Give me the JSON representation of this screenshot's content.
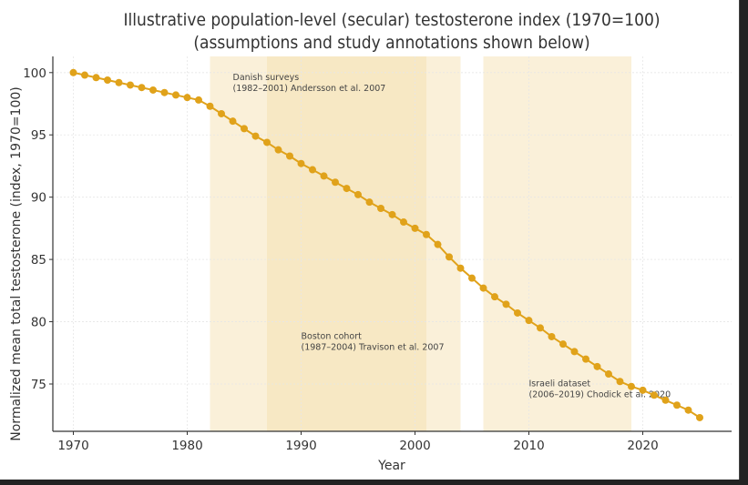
{
  "chart_data": {
    "type": "line",
    "title": "Illustrative population-level (secular) testosterone index (1970=100)",
    "subtitle": "(assumptions and study annotations shown below)",
    "xlabel": "Year",
    "ylabel": "Normalized mean total testosterone (index, 1970=100)",
    "xlim": [
      1968.2,
      2027.8
    ],
    "ylim": [
      71.2,
      101.3
    ],
    "x_ticks": [
      1970,
      1980,
      1990,
      2000,
      2010,
      2020
    ],
    "y_ticks": [
      75,
      80,
      85,
      90,
      95,
      100
    ],
    "grid": true,
    "series": [
      {
        "name": "Testosterone index",
        "color": "#E0A21A",
        "marker": "circle",
        "x": [
          1970,
          1971,
          1972,
          1973,
          1974,
          1975,
          1976,
          1977,
          1978,
          1979,
          1980,
          1981,
          1982,
          1983,
          1984,
          1985,
          1986,
          1987,
          1988,
          1989,
          1990,
          1991,
          1992,
          1993,
          1994,
          1995,
          1996,
          1997,
          1998,
          1999,
          2000,
          2001,
          2002,
          2003,
          2004,
          2005,
          2006,
          2007,
          2008,
          2009,
          2010,
          2011,
          2012,
          2013,
          2014,
          2015,
          2016,
          2017,
          2018,
          2019,
          2020,
          2021,
          2022,
          2023,
          2024,
          2025
        ],
        "values": [
          100.0,
          99.8,
          99.6,
          99.4,
          99.2,
          99.0,
          98.8,
          98.6,
          98.4,
          98.2,
          98.0,
          97.8,
          97.3,
          96.7,
          96.1,
          95.5,
          94.9,
          94.4,
          93.8,
          93.3,
          92.7,
          92.2,
          91.7,
          91.2,
          90.7,
          90.2,
          89.6,
          89.1,
          88.6,
          88.0,
          87.5,
          87.0,
          86.2,
          85.2,
          84.3,
          83.5,
          82.7,
          82.0,
          81.4,
          80.7,
          80.1,
          79.5,
          78.8,
          78.2,
          77.6,
          77.0,
          76.4,
          75.8,
          75.2,
          74.8,
          74.5,
          74.1,
          73.7,
          73.3,
          72.9,
          72.3
        ]
      }
    ],
    "shaded_spans": [
      {
        "label": "Danish surveys",
        "detail": "(1982–2001) Andersson et al. 2007",
        "start": 1982,
        "end": 2001,
        "color": "#F5DDAA",
        "opacity": 0.45
      },
      {
        "label": "Boston cohort",
        "detail": "(1987–2004) Travison et al. 2007",
        "start": 1987,
        "end": 2004,
        "color": "#F5DDAA",
        "opacity": 0.45
      },
      {
        "label": "Israeli dataset",
        "detail": "(2006–2019) Chodick et al. 2020",
        "start": 2006,
        "end": 2019,
        "color": "#F5DDAA",
        "opacity": 0.45
      }
    ],
    "annotations": [
      {
        "text_line1": "Danish surveys",
        "text_line2": "(1982–2001) Andersson et al. 2007",
        "x": 1984,
        "y": 99.4
      },
      {
        "text_line1": "Boston cohort",
        "text_line2": "(1987–2004) Travison et al. 2007",
        "x": 1990,
        "y": 78.6
      },
      {
        "text_line1": "Israeli dataset",
        "text_line2": "(2006–2019) Chodick et al. 2020",
        "x": 2010,
        "y": 74.8
      }
    ]
  }
}
